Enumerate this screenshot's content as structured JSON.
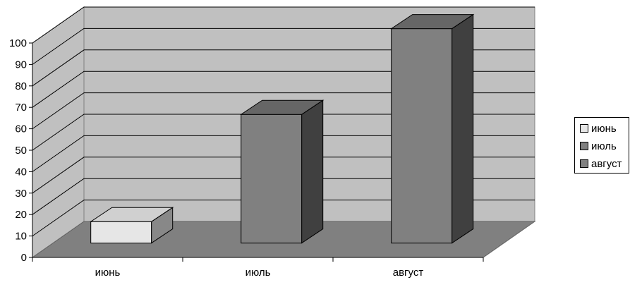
{
  "chart_data": {
    "type": "bar",
    "categories": [
      "июнь",
      "июль",
      "август"
    ],
    "values": [
      10,
      60,
      100
    ],
    "ylim": [
      0,
      100
    ],
    "ystep": 10,
    "grid": true,
    "legend_position": "right",
    "legend": [
      "июнь",
      "июль",
      "август"
    ],
    "colors": [
      "#e6e6e6",
      "#808080",
      "#808080"
    ],
    "side_colors": [
      "#888888",
      "#404040",
      "#404040"
    ],
    "top_colors": [
      "#d0d0d0",
      "#666666",
      "#666666"
    ]
  }
}
